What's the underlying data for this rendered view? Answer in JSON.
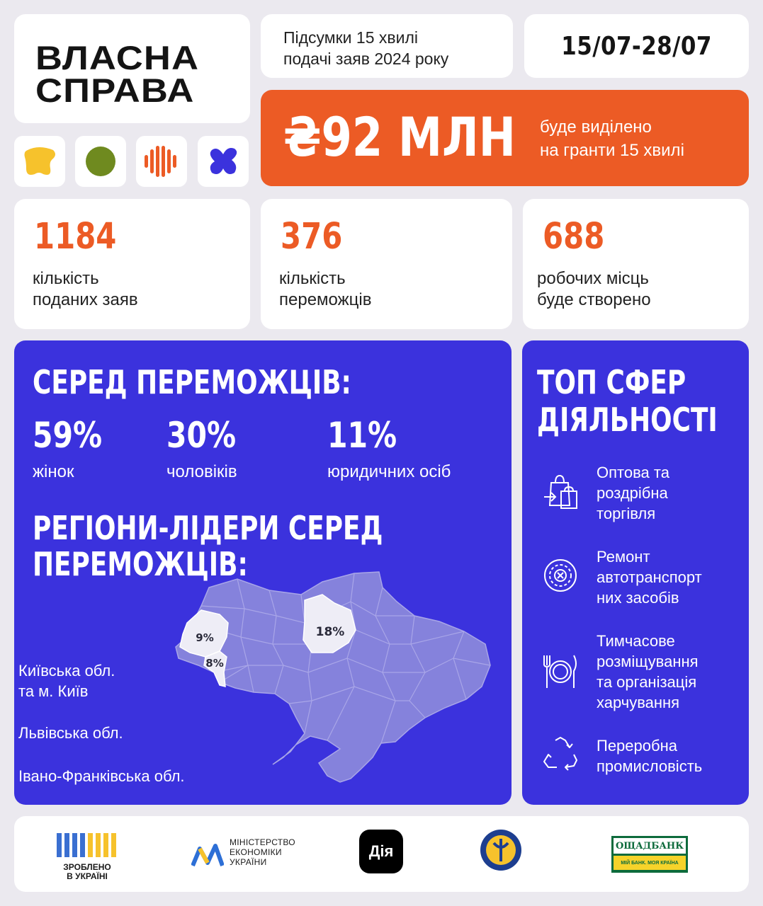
{
  "logo": {
    "line1": "ВЛАСНА",
    "line2": "СПРАВА"
  },
  "header": {
    "summary_line1": "Підсумки 15 хвилі",
    "summary_line2": "подачі заяв 2024 року",
    "dates": "15/07-28/07"
  },
  "budget": {
    "amount": "₴92 МЛН",
    "desc_line1": "буде виділено",
    "desc_line2": "на гранти 15 хвилі"
  },
  "stats": [
    {
      "value": "1184",
      "label_line1": "кількість",
      "label_line2": "поданих заяв"
    },
    {
      "value": "376",
      "label_line1": "кількість",
      "label_line2": "переможців"
    },
    {
      "value": "688",
      "label_line1": "робочих місць",
      "label_line2": "буде створено"
    }
  ],
  "winners": {
    "heading": "СЕРЕД ПЕРЕМОЖЦІВ:",
    "items": [
      {
        "value": "59%",
        "label": "жінок"
      },
      {
        "value": "30%",
        "label": "чоловіків"
      },
      {
        "value": "11%",
        "label": "юридичних осіб"
      }
    ]
  },
  "regions": {
    "heading_line1": "РЕГІОНИ-ЛІДЕРИ СЕРЕД",
    "heading_line2": "ПЕРЕМОЖЦІВ:",
    "map_labels": {
      "kyiv": "18%",
      "lviv": "9%",
      "ivano_frankivsk": "8%"
    },
    "list": [
      {
        "line1": "Київська обл.",
        "line2": "та м. Київ"
      },
      {
        "line1": "Львівська обл.",
        "line2": ""
      },
      {
        "line1": "Івано-Франківська обл.",
        "line2": ""
      }
    ]
  },
  "top_spheres": {
    "heading_line1": "ТОП СФЕР",
    "heading_line2": "ДІЯЛЬНОСТІ",
    "items": [
      {
        "icon": "shopping-bags-icon",
        "lines": [
          "Оптова та",
          "роздрібна",
          "торгівля"
        ]
      },
      {
        "icon": "gear-wrench-icon",
        "lines": [
          "Ремонт",
          "автотранспорт",
          "них засобів"
        ]
      },
      {
        "icon": "plate-cutlery-icon",
        "lines": [
          "Тимчасове",
          "розміщування",
          "та організація",
          "харчування"
        ]
      },
      {
        "icon": "recycle-icon",
        "lines": [
          "Переробна",
          "промисловість"
        ]
      }
    ]
  },
  "partners": {
    "made_in_ua_line1": "ЗРОБЛЕНО",
    "made_in_ua_line2": "В УКРАЇНІ",
    "ministry_line1": "МІНІСТЕРСТВО",
    "ministry_line2": "ЕКОНОМІКИ",
    "ministry_line3": "УКРАЇНИ",
    "diia": "Дія",
    "oschadbank": "ОЩАДБАНК",
    "oschadbank_tagline": "МІЙ БАНК. МОЯ КРАЇНА"
  },
  "colors": {
    "orange": "#ec5b25",
    "blue": "#3b32dd",
    "yellow": "#f6c22c",
    "olive": "#6f8a1f"
  }
}
